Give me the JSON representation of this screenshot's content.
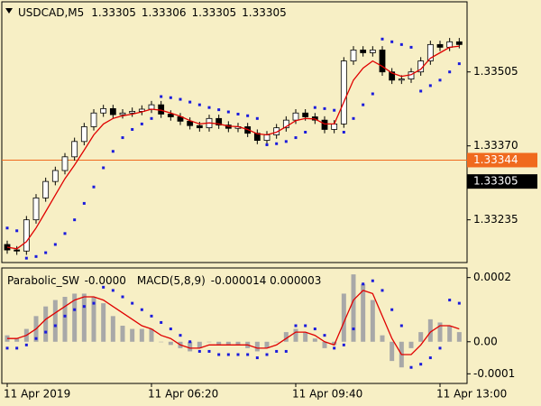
{
  "chart_data": [
    {
      "type": "candlestick",
      "symbol": "USDCAD,M5",
      "quote": [
        1.33305,
        1.33306,
        1.33305,
        1.33305
      ],
      "categories": [
        "11 Apr 2019",
        null,
        null,
        null,
        null,
        null,
        null,
        null,
        null,
        null,
        null,
        null,
        null,
        null,
        null,
        "11 Apr 06:20",
        null,
        null,
        null,
        null,
        null,
        null,
        null,
        null,
        null,
        null,
        null,
        null,
        null,
        null,
        "11 Apr 09:40",
        null,
        null,
        null,
        null,
        null,
        null,
        null,
        null,
        null,
        null,
        null,
        null,
        null,
        null,
        "11 Apr 13:00",
        null,
        null
      ],
      "open": [
        1.3319,
        1.3318,
        1.33178,
        1.33235,
        1.33275,
        1.33305,
        1.33325,
        1.3335,
        1.33378,
        1.33405,
        1.3343,
        1.33438,
        1.33427,
        1.3343,
        1.33433,
        1.33437,
        1.33445,
        1.33428,
        1.33423,
        1.33415,
        1.33407,
        1.33403,
        1.3342,
        1.33408,
        1.33402,
        1.33405,
        1.33393,
        1.3338,
        1.3339,
        1.33403,
        1.33417,
        1.3343,
        1.33423,
        1.33417,
        1.334,
        1.3341,
        1.33525,
        1.33545,
        1.3354,
        1.33545,
        1.33505,
        1.3349,
        1.33492,
        1.33505,
        1.33525,
        1.33555,
        1.3355,
        1.3356
      ],
      "high": [
        1.33197,
        1.33187,
        1.33242,
        1.33282,
        1.33312,
        1.33332,
        1.33357,
        1.33385,
        1.33412,
        1.33437,
        1.33445,
        1.33445,
        1.33437,
        1.3344,
        1.33444,
        1.33452,
        1.33452,
        1.33435,
        1.3343,
        1.33422,
        1.33414,
        1.33427,
        1.33427,
        1.33415,
        1.33412,
        1.33412,
        1.334,
        1.33397,
        1.3341,
        1.33424,
        1.33437,
        1.33437,
        1.3343,
        1.33424,
        1.33417,
        1.33532,
        1.33552,
        1.33552,
        1.33552,
        1.33552,
        1.33512,
        1.33499,
        1.33512,
        1.33532,
        1.33562,
        1.33562,
        1.33567,
        1.33567
      ],
      "low": [
        1.33173,
        1.33171,
        1.33171,
        1.33228,
        1.33268,
        1.33298,
        1.33318,
        1.33343,
        1.33371,
        1.33398,
        1.33423,
        1.3342,
        1.3342,
        1.33423,
        1.33426,
        1.3343,
        1.33421,
        1.33416,
        1.33408,
        1.334,
        1.33396,
        1.33396,
        1.33401,
        1.33395,
        1.33395,
        1.33386,
        1.33373,
        1.33373,
        1.33383,
        1.33396,
        1.3341,
        1.33416,
        1.3341,
        1.33393,
        1.33393,
        1.33403,
        1.33518,
        1.33533,
        1.33533,
        1.33498,
        1.33483,
        1.33483,
        1.33485,
        1.33498,
        1.33518,
        1.33543,
        1.33543,
        1.33548
      ],
      "close": [
        1.3318,
        1.33178,
        1.33235,
        1.33275,
        1.33305,
        1.33325,
        1.3335,
        1.33378,
        1.33405,
        1.3343,
        1.33438,
        1.33427,
        1.3343,
        1.33433,
        1.33437,
        1.33445,
        1.33428,
        1.33423,
        1.33415,
        1.33407,
        1.33403,
        1.3342,
        1.33408,
        1.33402,
        1.33405,
        1.33393,
        1.3338,
        1.3339,
        1.33403,
        1.33417,
        1.3343,
        1.33423,
        1.33417,
        1.334,
        1.3341,
        1.33525,
        1.33545,
        1.3354,
        1.33545,
        1.33505,
        1.3349,
        1.33492,
        1.33505,
        1.33525,
        1.33555,
        1.3355,
        1.3356,
        1.33555
      ],
      "up_color": "#ffffff",
      "down_color": "#000000",
      "overlays": [
        {
          "type": "line",
          "color": "#e00000",
          "values": [
            1.33185,
            1.33182,
            1.33195,
            1.3322,
            1.3325,
            1.3328,
            1.3331,
            1.33335,
            1.33362,
            1.3339,
            1.3341,
            1.3342,
            1.33425,
            1.33428,
            1.33432,
            1.33437,
            1.33435,
            1.3343,
            1.33424,
            1.33416,
            1.3341,
            1.33412,
            1.3341,
            1.33406,
            1.33405,
            1.334,
            1.33392,
            1.3339,
            1.33395,
            1.33405,
            1.33416,
            1.3342,
            1.33419,
            1.3341,
            1.3341,
            1.3345,
            1.3349,
            1.33512,
            1.33525,
            1.33515,
            1.33503,
            1.33497,
            1.335,
            1.3351,
            1.3353,
            1.3354,
            1.3355,
            1.33552
          ]
        },
        {
          "type": "dots",
          "color": "#1a1adc",
          "values": [
            1.3322,
            1.33215,
            1.33165,
            1.33168,
            1.33175,
            1.3319,
            1.3321,
            1.33235,
            1.33265,
            1.33295,
            1.3333,
            1.3336,
            1.33385,
            1.334,
            1.3341,
            1.3342,
            1.3346,
            1.33458,
            1.33455,
            1.3345,
            1.33445,
            1.3344,
            1.33436,
            1.33432,
            1.33428,
            1.33425,
            1.3342,
            1.33372,
            1.33374,
            1.33378,
            1.33385,
            1.33395,
            1.3344,
            1.33438,
            1.33435,
            1.33395,
            1.3342,
            1.33445,
            1.33465,
            1.33565,
            1.3356,
            1.33555,
            1.3355,
            1.3347,
            1.3348,
            1.3349,
            1.33505,
            1.3352
          ]
        }
      ],
      "price_lines": [
        {
          "value": 1.33344,
          "label": "1.33344",
          "color": "#f06a1e",
          "line": true
        },
        {
          "value": 1.33305,
          "label": "1.33305",
          "color": "#000000",
          "line": false
        }
      ],
      "ylim": [
        1.33157,
        1.33633
      ],
      "yticks": [
        1.33235,
        {
          "value": 1.3337,
          "label": "1.33370"
        },
        1.33505
      ]
    },
    {
      "type": "macd",
      "readouts": [
        "-0.0000",
        "-0.000014 0.000003"
      ],
      "series": [
        {
          "name": "Parabolic_SW",
          "type": "dots",
          "color": "#1a1adc",
          "values": [
            -2e-05,
            -2e-05,
            -1e-05,
            1e-05,
            3e-05,
            5e-05,
            8e-05,
            0.0001,
            0.00011,
            0.00012,
            0.00017,
            0.00016,
            0.00014,
            0.00012,
            0.0001,
            8e-05,
            6e-05,
            4e-05,
            2e-05,
            0.0,
            -3e-05,
            -3e-05,
            -4e-05,
            -4e-05,
            -4e-05,
            -4e-05,
            -5e-05,
            -4e-05,
            -3e-05,
            -3e-05,
            5e-05,
            5e-05,
            4e-05,
            2e-05,
            -2e-05,
            -1e-05,
            4e-05,
            0.00018,
            0.00019,
            0.00016,
            0.0001,
            5e-05,
            -8e-05,
            -7e-05,
            -5e-05,
            -2e-05,
            0.00013,
            0.00012
          ]
        },
        {
          "name": "MACD(5,8,9)",
          "type": "bar",
          "color": "#a8a8a8",
          "values": [
            2e-05,
            1e-05,
            4e-05,
            8e-05,
            0.00011,
            0.00013,
            0.00014,
            0.00015,
            0.00015,
            0.00014,
            0.00012,
            8e-05,
            5e-05,
            4e-05,
            4e-05,
            4e-05,
            0.0,
            -1e-05,
            -2e-05,
            -3e-05,
            -2e-05,
            0.0,
            -1e-05,
            -1e-05,
            -1e-05,
            -2e-05,
            -3e-05,
            -2e-05,
            0.0,
            3e-05,
            4e-05,
            3e-05,
            1e-05,
            -2e-05,
            -1e-05,
            0.00015,
            0.00021,
            0.00018,
            0.00013,
            2e-05,
            -6e-05,
            -8e-05,
            -2e-05,
            3e-05,
            7e-05,
            6e-05,
            5e-05,
            3e-05
          ]
        },
        {
          "type": "line",
          "color": "#e00000",
          "values": [
            1e-05,
            1e-05,
            2e-05,
            4e-05,
            7e-05,
            9e-05,
            0.00011,
            0.00013,
            0.00014,
            0.00014,
            0.00013,
            0.00011,
            9e-05,
            7e-05,
            5e-05,
            4e-05,
            2e-05,
            1e-05,
            -1e-05,
            -2e-05,
            -2e-05,
            -1e-05,
            -1e-05,
            -1e-05,
            -1e-05,
            -1e-05,
            -2e-05,
            -2e-05,
            -1e-05,
            1e-05,
            3e-05,
            3e-05,
            2e-05,
            0.0,
            -1e-05,
            6e-05,
            0.00013,
            0.00016,
            0.00015,
            8e-05,
            1e-05,
            -4e-05,
            -4e-05,
            -1e-05,
            3e-05,
            5e-05,
            5e-05,
            4e-05
          ]
        }
      ],
      "ylim": [
        -0.00013,
        0.00023
      ],
      "yticks": [
        0.0002,
        {
          "value": 0,
          "label": "0.00"
        },
        -0.0001
      ]
    }
  ]
}
